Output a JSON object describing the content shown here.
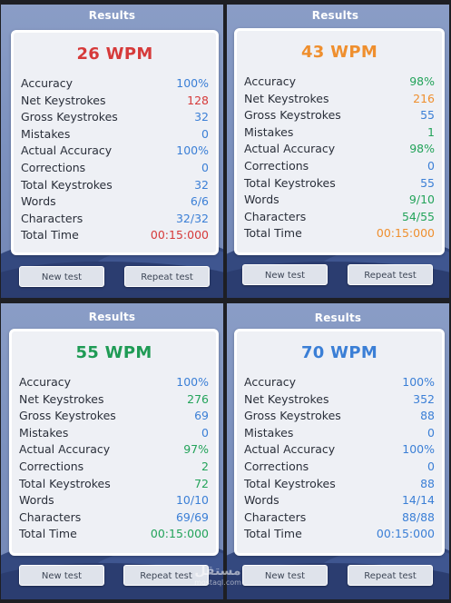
{
  "panels": [
    {
      "title": "Results",
      "wpm": "26 WPM",
      "wpm_color": "#d63a3a",
      "stats": [
        {
          "label": "Accuracy",
          "value": "100%",
          "color": "#3b7fd6"
        },
        {
          "label": "Net Keystrokes",
          "value": "128",
          "color": "#d63a3a"
        },
        {
          "label": "Gross Keystrokes",
          "value": "32",
          "color": "#3b7fd6"
        },
        {
          "label": "Mistakes",
          "value": "0",
          "color": "#3b7fd6"
        },
        {
          "label": "Actual Accuracy",
          "value": "100%",
          "color": "#3b7fd6"
        },
        {
          "label": "Corrections",
          "value": "0",
          "color": "#3b7fd6"
        },
        {
          "label": "Total Keystrokes",
          "value": "32",
          "color": "#3b7fd6"
        },
        {
          "label": "Words",
          "value": "6/6",
          "color": "#3b7fd6"
        },
        {
          "label": "Characters",
          "value": "32/32",
          "color": "#3b7fd6"
        },
        {
          "label": "Total Time",
          "value": "00:15:000",
          "color": "#d63a3a"
        }
      ],
      "new_test": "New test",
      "repeat_test": "Repeat test"
    },
    {
      "title": "Results",
      "wpm": "43 WPM",
      "wpm_color": "#ef8f2e",
      "stats": [
        {
          "label": "Accuracy",
          "value": "98%",
          "color": "#23a35a"
        },
        {
          "label": "Net Keystrokes",
          "value": "216",
          "color": "#ef8f2e"
        },
        {
          "label": "Gross Keystrokes",
          "value": "55",
          "color": "#3b7fd6"
        },
        {
          "label": "Mistakes",
          "value": "1",
          "color": "#23a35a"
        },
        {
          "label": "Actual Accuracy",
          "value": "98%",
          "color": "#23a35a"
        },
        {
          "label": "Corrections",
          "value": "0",
          "color": "#3b7fd6"
        },
        {
          "label": "Total Keystrokes",
          "value": "55",
          "color": "#3b7fd6"
        },
        {
          "label": "Words",
          "value": "9/10",
          "color": "#23a35a"
        },
        {
          "label": "Characters",
          "value": "54/55",
          "color": "#23a35a"
        },
        {
          "label": "Total Time",
          "value": "00:15:000",
          "color": "#ef8f2e"
        }
      ],
      "new_test": "New test",
      "repeat_test": "Repeat test"
    },
    {
      "title": "Results",
      "wpm": "55 WPM",
      "wpm_color": "#1f9b55",
      "stats": [
        {
          "label": "Accuracy",
          "value": "100%",
          "color": "#3b7fd6"
        },
        {
          "label": "Net Keystrokes",
          "value": "276",
          "color": "#23a35a"
        },
        {
          "label": "Gross Keystrokes",
          "value": "69",
          "color": "#3b7fd6"
        },
        {
          "label": "Mistakes",
          "value": "0",
          "color": "#3b7fd6"
        },
        {
          "label": "Actual Accuracy",
          "value": "97%",
          "color": "#23a35a"
        },
        {
          "label": "Corrections",
          "value": "2",
          "color": "#23a35a"
        },
        {
          "label": "Total Keystrokes",
          "value": "72",
          "color": "#23a35a"
        },
        {
          "label": "Words",
          "value": "10/10",
          "color": "#3b7fd6"
        },
        {
          "label": "Characters",
          "value": "69/69",
          "color": "#3b7fd6"
        },
        {
          "label": "Total Time",
          "value": "00:15:000",
          "color": "#23a35a"
        }
      ],
      "new_test": "New test",
      "repeat_test": "Repeat test"
    },
    {
      "title": "Results",
      "wpm": "70 WPM",
      "wpm_color": "#3b7fd6",
      "stats": [
        {
          "label": "Accuracy",
          "value": "100%",
          "color": "#3b7fd6"
        },
        {
          "label": "Net Keystrokes",
          "value": "352",
          "color": "#3b7fd6"
        },
        {
          "label": "Gross Keystrokes",
          "value": "88",
          "color": "#3b7fd6"
        },
        {
          "label": "Mistakes",
          "value": "0",
          "color": "#3b7fd6"
        },
        {
          "label": "Actual Accuracy",
          "value": "100%",
          "color": "#3b7fd6"
        },
        {
          "label": "Corrections",
          "value": "0",
          "color": "#3b7fd6"
        },
        {
          "label": "Total Keystrokes",
          "value": "88",
          "color": "#3b7fd6"
        },
        {
          "label": "Words",
          "value": "14/14",
          "color": "#3b7fd6"
        },
        {
          "label": "Characters",
          "value": "88/88",
          "color": "#3b7fd6"
        },
        {
          "label": "Total Time",
          "value": "00:15:000",
          "color": "#3b7fd6"
        }
      ],
      "new_test": "New test",
      "repeat_test": "Repeat test"
    }
  ],
  "watermark": {
    "logo_text": "مستقل",
    "url_text": "mostaql.com"
  }
}
